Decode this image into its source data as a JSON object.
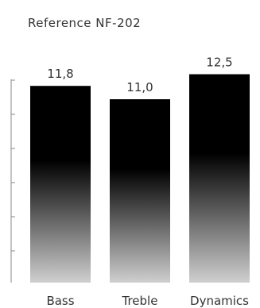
{
  "chart_data": {
    "type": "bar",
    "title": "Reference NF-202",
    "categories": [
      "Bass",
      "Treble",
      "Dynamics"
    ],
    "values": [
      11.8,
      11.0,
      12.5
    ],
    "value_labels": [
      "11,8",
      "11,0",
      "12,5"
    ],
    "xlabel": "",
    "ylabel": "",
    "ylim": [
      0,
      14
    ],
    "grid": false,
    "legend": "none",
    "colors": {
      "bar_top": "#000000",
      "bar_bottom": "#cfcfcf",
      "axis": "#8a8a8a",
      "text": "#333333"
    }
  }
}
